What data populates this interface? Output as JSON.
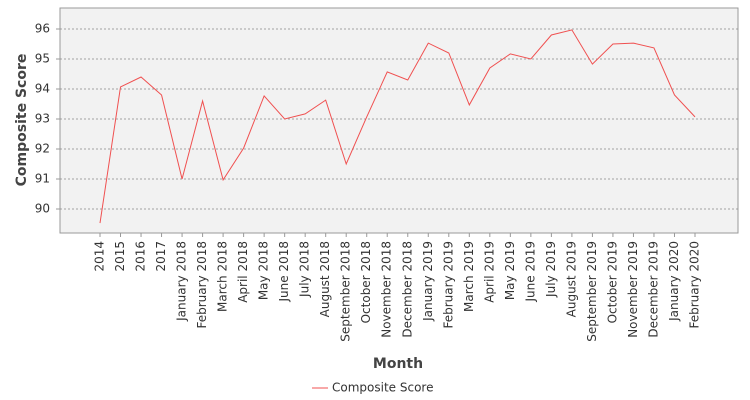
{
  "chart_data": {
    "type": "line",
    "x_label": "Month",
    "y_label": "Composite Score",
    "categories": [
      "2014",
      "2015",
      "2016",
      "2017",
      "January 2018",
      "February 2018",
      "March 2018",
      "April 2018",
      "May 2018",
      "June 2018",
      "July 2018",
      "August 2018",
      "September 2018",
      "October 2018",
      "November 2018",
      "December 2018",
      "January 2019",
      "February 2019",
      "March 2019",
      "April 2019",
      "May 2019",
      "June 2019",
      "July 2019",
      "August 2019",
      "September 2019",
      "October 2019",
      "November 2019",
      "December 2019",
      "January 2020",
      "February 2020"
    ],
    "series": [
      {
        "name": "Composite Score",
        "color": "#f05050",
        "values": [
          89.53,
          94.07,
          94.4,
          93.8,
          91.0,
          93.6,
          90.97,
          92.03,
          93.77,
          93.0,
          93.17,
          93.63,
          91.5,
          93.07,
          94.57,
          94.3,
          95.53,
          95.2,
          93.47,
          94.7,
          95.17,
          95.0,
          95.8,
          95.97,
          94.83,
          95.5,
          95.53,
          95.37,
          93.8,
          93.07
        ]
      }
    ],
    "ylim": [
      89.2,
      96.7
    ],
    "yticks": [
      90,
      91,
      92,
      93,
      94,
      95,
      96
    ],
    "grid": true,
    "legend": "bottom"
  }
}
